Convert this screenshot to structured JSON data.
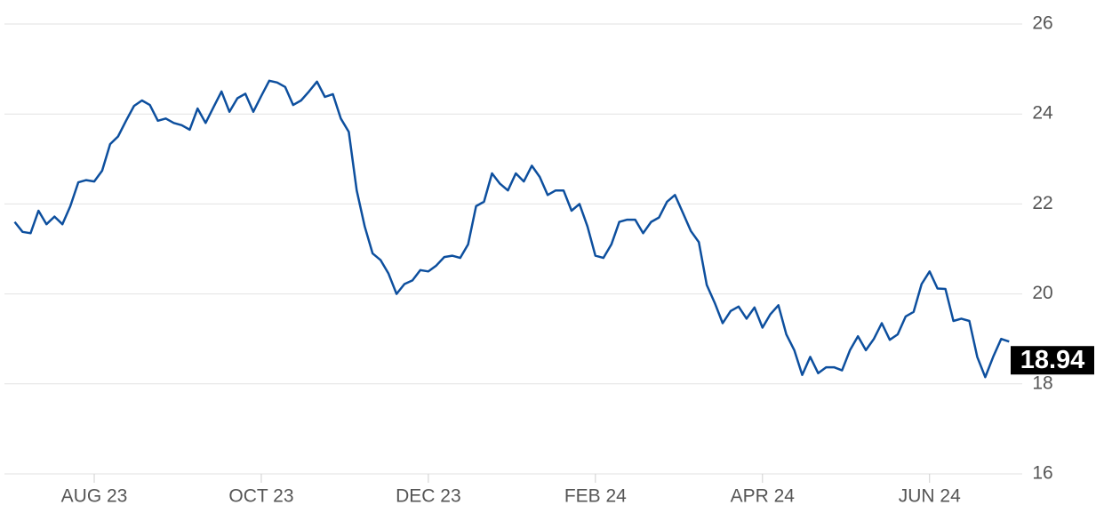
{
  "chart_data": {
    "type": "line",
    "categories": [
      null,
      null,
      null,
      null,
      null,
      null,
      null,
      null,
      null,
      null,
      "AUG 23",
      null,
      null,
      null,
      null,
      null,
      null,
      null,
      null,
      null,
      null,
      null,
      null,
      null,
      null,
      null,
      null,
      null,
      null,
      null,
      null,
      "OCT 23",
      null,
      null,
      null,
      null,
      null,
      null,
      null,
      null,
      null,
      null,
      null,
      null,
      null,
      null,
      null,
      null,
      null,
      null,
      null,
      null,
      "DEC 23",
      null,
      null,
      null,
      null,
      null,
      null,
      null,
      null,
      null,
      null,
      null,
      null,
      null,
      null,
      null,
      null,
      null,
      null,
      null,
      null,
      "FEB 24",
      null,
      null,
      null,
      null,
      null,
      null,
      null,
      null,
      null,
      null,
      null,
      null,
      null,
      null,
      null,
      null,
      null,
      null,
      null,
      null,
      "APR 24",
      null,
      null,
      null,
      null,
      null,
      null,
      null,
      null,
      null,
      null,
      null,
      null,
      null,
      null,
      null,
      null,
      null,
      null,
      null,
      null,
      "JUN 24",
      null,
      null,
      null,
      null,
      null,
      null,
      null,
      null,
      null,
      null
    ],
    "values": [
      21.6,
      21.38,
      21.35,
      21.85,
      21.55,
      21.72,
      21.55,
      21.95,
      22.48,
      22.53,
      22.5,
      22.74,
      23.33,
      23.5,
      23.85,
      24.18,
      24.3,
      24.2,
      23.85,
      23.9,
      23.8,
      23.75,
      23.65,
      24.12,
      23.8,
      24.15,
      24.5,
      24.05,
      24.35,
      24.45,
      24.05,
      24.4,
      24.74,
      24.7,
      24.6,
      24.2,
      24.3,
      24.5,
      24.72,
      24.38,
      24.44,
      23.9,
      23.6,
      22.3,
      21.5,
      20.9,
      20.75,
      20.45,
      20.0,
      20.22,
      20.3,
      20.53,
      20.5,
      20.63,
      20.82,
      20.85,
      20.8,
      21.1,
      21.95,
      22.05,
      22.68,
      22.45,
      22.3,
      22.68,
      22.5,
      22.85,
      22.6,
      22.2,
      22.3,
      22.3,
      21.85,
      22.0,
      21.5,
      20.85,
      20.8,
      21.1,
      21.6,
      21.65,
      21.65,
      21.35,
      21.6,
      21.7,
      22.05,
      22.2,
      21.8,
      21.4,
      21.15,
      20.2,
      19.8,
      19.35,
      19.62,
      19.72,
      19.45,
      19.7,
      19.25,
      19.55,
      19.75,
      19.1,
      18.75,
      18.2,
      18.6,
      18.24,
      18.37,
      18.37,
      18.3,
      18.75,
      19.06,
      18.75,
      19.0,
      19.35,
      18.98,
      19.1,
      19.5,
      19.6,
      20.22,
      20.5,
      20.12,
      20.11,
      19.4,
      19.45,
      19.4,
      18.6,
      18.15,
      18.6,
      19.0,
      18.94
    ],
    "color": "#0d4f9e",
    "ylim": [
      16,
      26
    ],
    "yticks": [
      16,
      18,
      20,
      22,
      24,
      26
    ],
    "grid": true
  }
}
